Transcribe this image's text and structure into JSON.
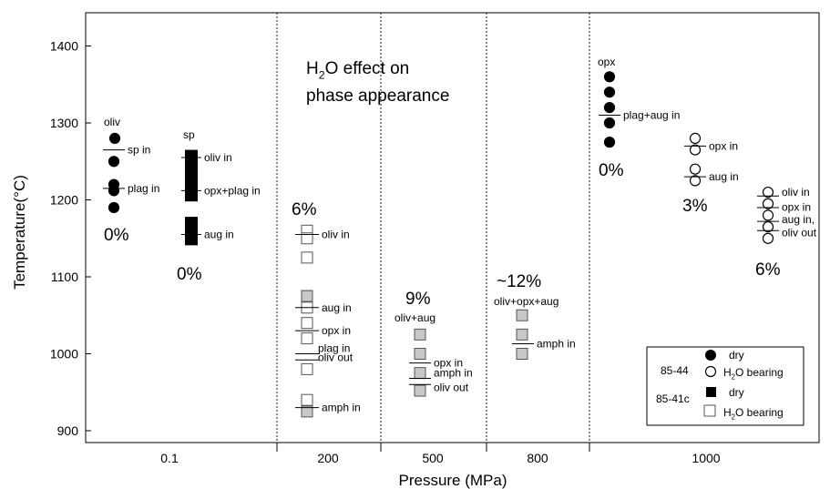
{
  "chart_data": {
    "type": "scatter",
    "title_main": "O effect on",
    "title_main_prefix": "H",
    "title_main_sub": "2",
    "title_line2": "phase appearance",
    "xlabel": "Pressure (MPa)",
    "ylabel": "Temperature(°C)",
    "ylim": [
      890,
      1450
    ],
    "yticks": [
      900,
      1000,
      1100,
      1200,
      1300,
      1400
    ],
    "x_categories": [
      "0.1",
      "200",
      "500",
      "800",
      "1000"
    ],
    "grid": false,
    "legend": {
      "position": "bottom-right",
      "groups": [
        {
          "sample": "85-44",
          "entries": [
            {
              "marker": "circle-filled",
              "label": "dry"
            },
            {
              "marker": "circle-open",
              "label_prefix": "H",
              "label_sub": "2",
              "label": "O bearing"
            }
          ]
        },
        {
          "sample": "85-41c",
          "entries": [
            {
              "marker": "square-filled",
              "label": "dry"
            },
            {
              "marker": "square-open",
              "label_prefix": "H",
              "label_sub": "2",
              "label": "O bearing"
            }
          ]
        }
      ]
    },
    "series": [
      {
        "sample": "85-44",
        "condition": "dry",
        "pressure": "0.1",
        "marker": "circle-filled",
        "temperatures": [
          1280,
          1250,
          1220,
          1212,
          1190
        ]
      },
      {
        "sample": "85-41c",
        "condition": "dry",
        "pressure": "0.1",
        "marker": "square-filled",
        "temperatures": [
          1260,
          1250,
          1240,
          1230,
          1220,
          1205,
          1170,
          1160,
          1150
        ]
      },
      {
        "sample": "85-41c",
        "condition": "H2O bearing",
        "pressure": "200",
        "marker": "square-open",
        "temperatures": [
          1160,
          1150,
          1125,
          1075,
          1060,
          1040,
          1020,
          980,
          940
        ]
      },
      {
        "sample": "85-41c",
        "condition": "H2O bearing",
        "pressure": "200",
        "marker": "square-gray",
        "temperatures": [
          1075,
          925
        ]
      },
      {
        "sample": "85-41c",
        "condition": "H2O bearing",
        "pressure": "500",
        "marker": "square-gray",
        "temperatures": [
          1025,
          1000,
          975,
          952
        ]
      },
      {
        "sample": "85-41c",
        "condition": "H2O bearing",
        "pressure": "800",
        "marker": "square-gray",
        "temperatures": [
          1050,
          1025,
          1000
        ]
      },
      {
        "sample": "85-44",
        "condition": "dry",
        "pressure": "1000",
        "marker": "circle-filled",
        "temperatures": [
          1360,
          1340,
          1320,
          1300,
          1275
        ]
      },
      {
        "sample": "85-44",
        "condition": "H2O bearing",
        "pressure": "1000",
        "marker": "circle-open",
        "temperatures": [
          1280,
          1265,
          1240,
          1225
        ]
      },
      {
        "sample": "85-44",
        "condition": "H2O bearing",
        "pressure": "1000",
        "marker": "circle-open",
        "temperatures": [
          1210,
          1195,
          1180,
          1165,
          1150
        ]
      }
    ],
    "phase_boundaries": [
      {
        "temperature": 1265,
        "label": "sp in"
      },
      {
        "temperature": 1215,
        "label": "plag in"
      },
      {
        "temperature": 1255,
        "label": "oliv in"
      },
      {
        "temperature": 1212,
        "label": "opx+plag in"
      },
      {
        "temperature": 1155,
        "label": "aug in"
      },
      {
        "temperature": 1155,
        "label": "oliv in"
      },
      {
        "temperature": 1060,
        "label": "aug in"
      },
      {
        "temperature": 1030,
        "label": "opx in"
      },
      {
        "temperature": 1000,
        "label": "plag in"
      },
      {
        "temperature": 992,
        "label": "oliv out"
      },
      {
        "temperature": 930,
        "label": "amph in"
      },
      {
        "temperature": 988,
        "label": "opx in"
      },
      {
        "temperature": 968,
        "label": "amph in"
      },
      {
        "temperature": 960,
        "label": "oliv out"
      },
      {
        "temperature": 1013,
        "label": "amph in"
      },
      {
        "temperature": 1310,
        "label": "plag+aug in"
      },
      {
        "temperature": 1270,
        "label": "opx in"
      },
      {
        "temperature": 1230,
        "label": "aug in"
      },
      {
        "temperature": 1205,
        "label": "oliv in"
      },
      {
        "temperature": 1190,
        "label": "opx in"
      },
      {
        "temperature": 1172,
        "label": "aug in,"
      },
      {
        "temperature": 1160,
        "label": "oliv out"
      }
    ],
    "annotations": [
      {
        "text": "oliv"
      },
      {
        "text": "sp"
      },
      {
        "text": "opx"
      },
      {
        "text": "oliv+aug"
      },
      {
        "text": "oliv+opx+aug"
      },
      {
        "text": "0%"
      },
      {
        "text": "0%"
      },
      {
        "text": "6%"
      },
      {
        "text": "9%"
      },
      {
        "text": "~12%"
      },
      {
        "text": "0%"
      },
      {
        "text": "3%"
      },
      {
        "text": "6%"
      }
    ]
  }
}
